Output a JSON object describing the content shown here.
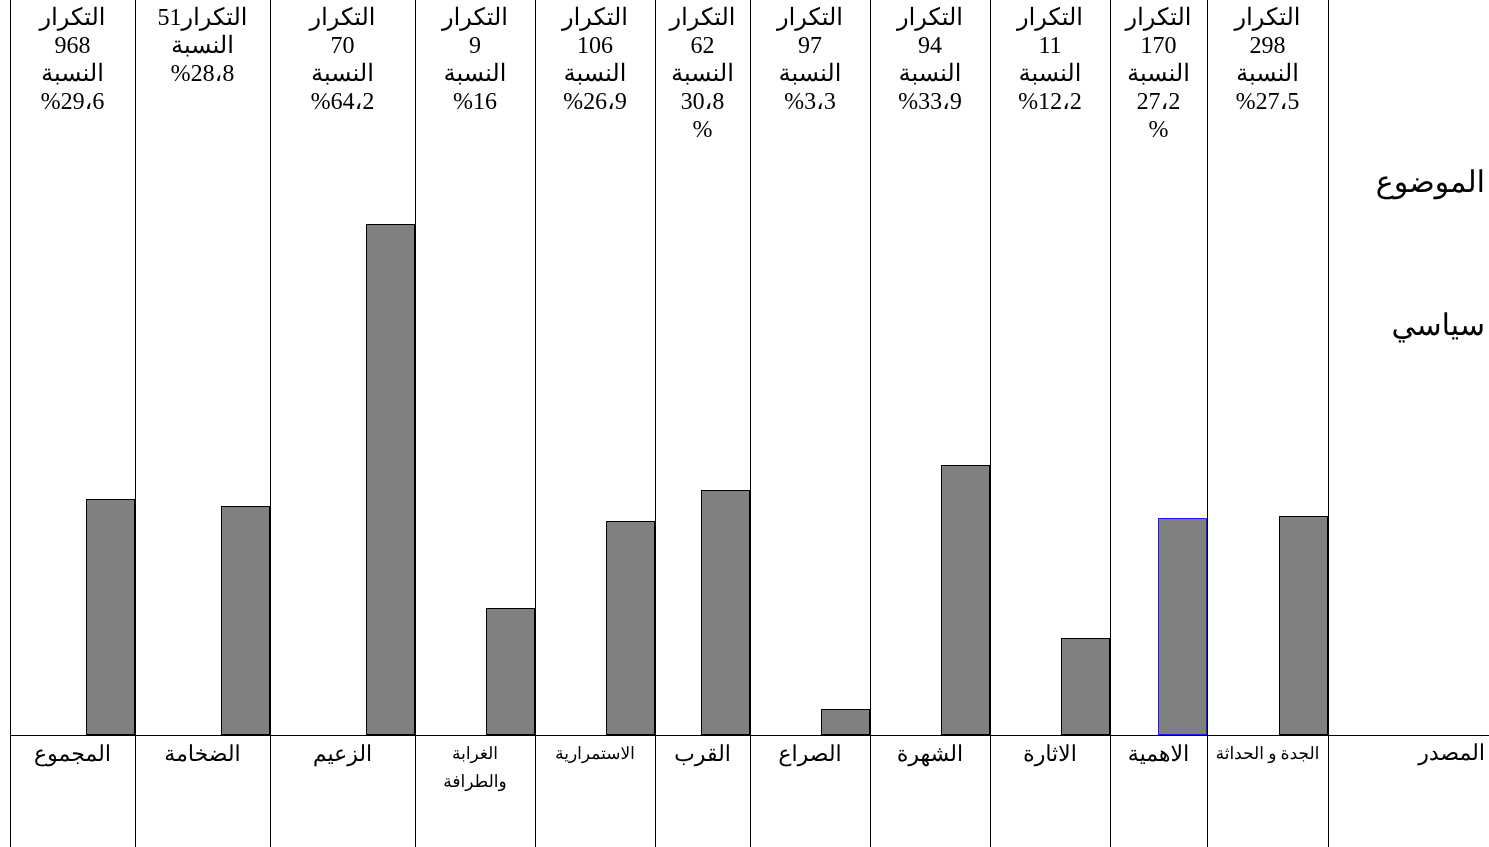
{
  "header": {
    "subject_word": "الموضوع",
    "subject": "سياسي",
    "source_word": "المصدر"
  },
  "columns": [
    {
      "name": "الجدة و الحداثة",
      "frequency_word": "التكرار",
      "frequency": 298,
      "percent_word": "النسبة",
      "percent": 27.5,
      "percent_label": "%27،5"
    },
    {
      "name": "الاهمية",
      "frequency_word": "التكرار",
      "frequency": 170,
      "percent_word": "النسبة",
      "percent": 27.2,
      "percent_label": "27،2\n%",
      "border_color": "#1a1aff"
    },
    {
      "name": "الاثارة",
      "frequency_word": "التكرار",
      "frequency": 11,
      "percent_word": "النسبة",
      "percent": 12.2,
      "percent_label": "%12،2"
    },
    {
      "name": "الشهرة",
      "frequency_word": "التكرار",
      "frequency": 94,
      "percent_word": "النسبة",
      "percent": 33.9,
      "percent_label": "%33،9"
    },
    {
      "name": "الصراع",
      "frequency_word": "التكرار",
      "frequency": 97,
      "percent_word": "النسبة",
      "percent": 3.3,
      "percent_label": "%3،3"
    },
    {
      "name": "القرب",
      "frequency_word": "التكرار",
      "frequency": 62,
      "percent_word": "النسبة",
      "percent": 30.8,
      "percent_label": "30،8\n%"
    },
    {
      "name": "الاستمرارية",
      "frequency_word": "التكرار",
      "frequency": 106,
      "percent_word": "النسبة",
      "percent": 26.9,
      "percent_label": "%26،9"
    },
    {
      "name": "الغرابة والطرافة",
      "frequency_word": "التكرار",
      "frequency": 9,
      "percent_word": "النسبة",
      "percent": 16,
      "percent_label": "%16"
    },
    {
      "name": "الزعيم",
      "frequency_word": "التكرار",
      "frequency": 70,
      "percent_word": "النسبة",
      "percent": 64.2,
      "percent_label": "%64،2"
    },
    {
      "name": "الضخامة",
      "frequency_word": "التكرار",
      "frequency": 51,
      "percent_word": "النسبة",
      "percent": 28.8,
      "percent_label": "%28،8"
    },
    {
      "name": "المجموع",
      "frequency_word": "التكرار",
      "frequency": 968,
      "percent_word": "النسبة",
      "percent": 29.6,
      "percent_label": "%29،6"
    }
  ]
}
